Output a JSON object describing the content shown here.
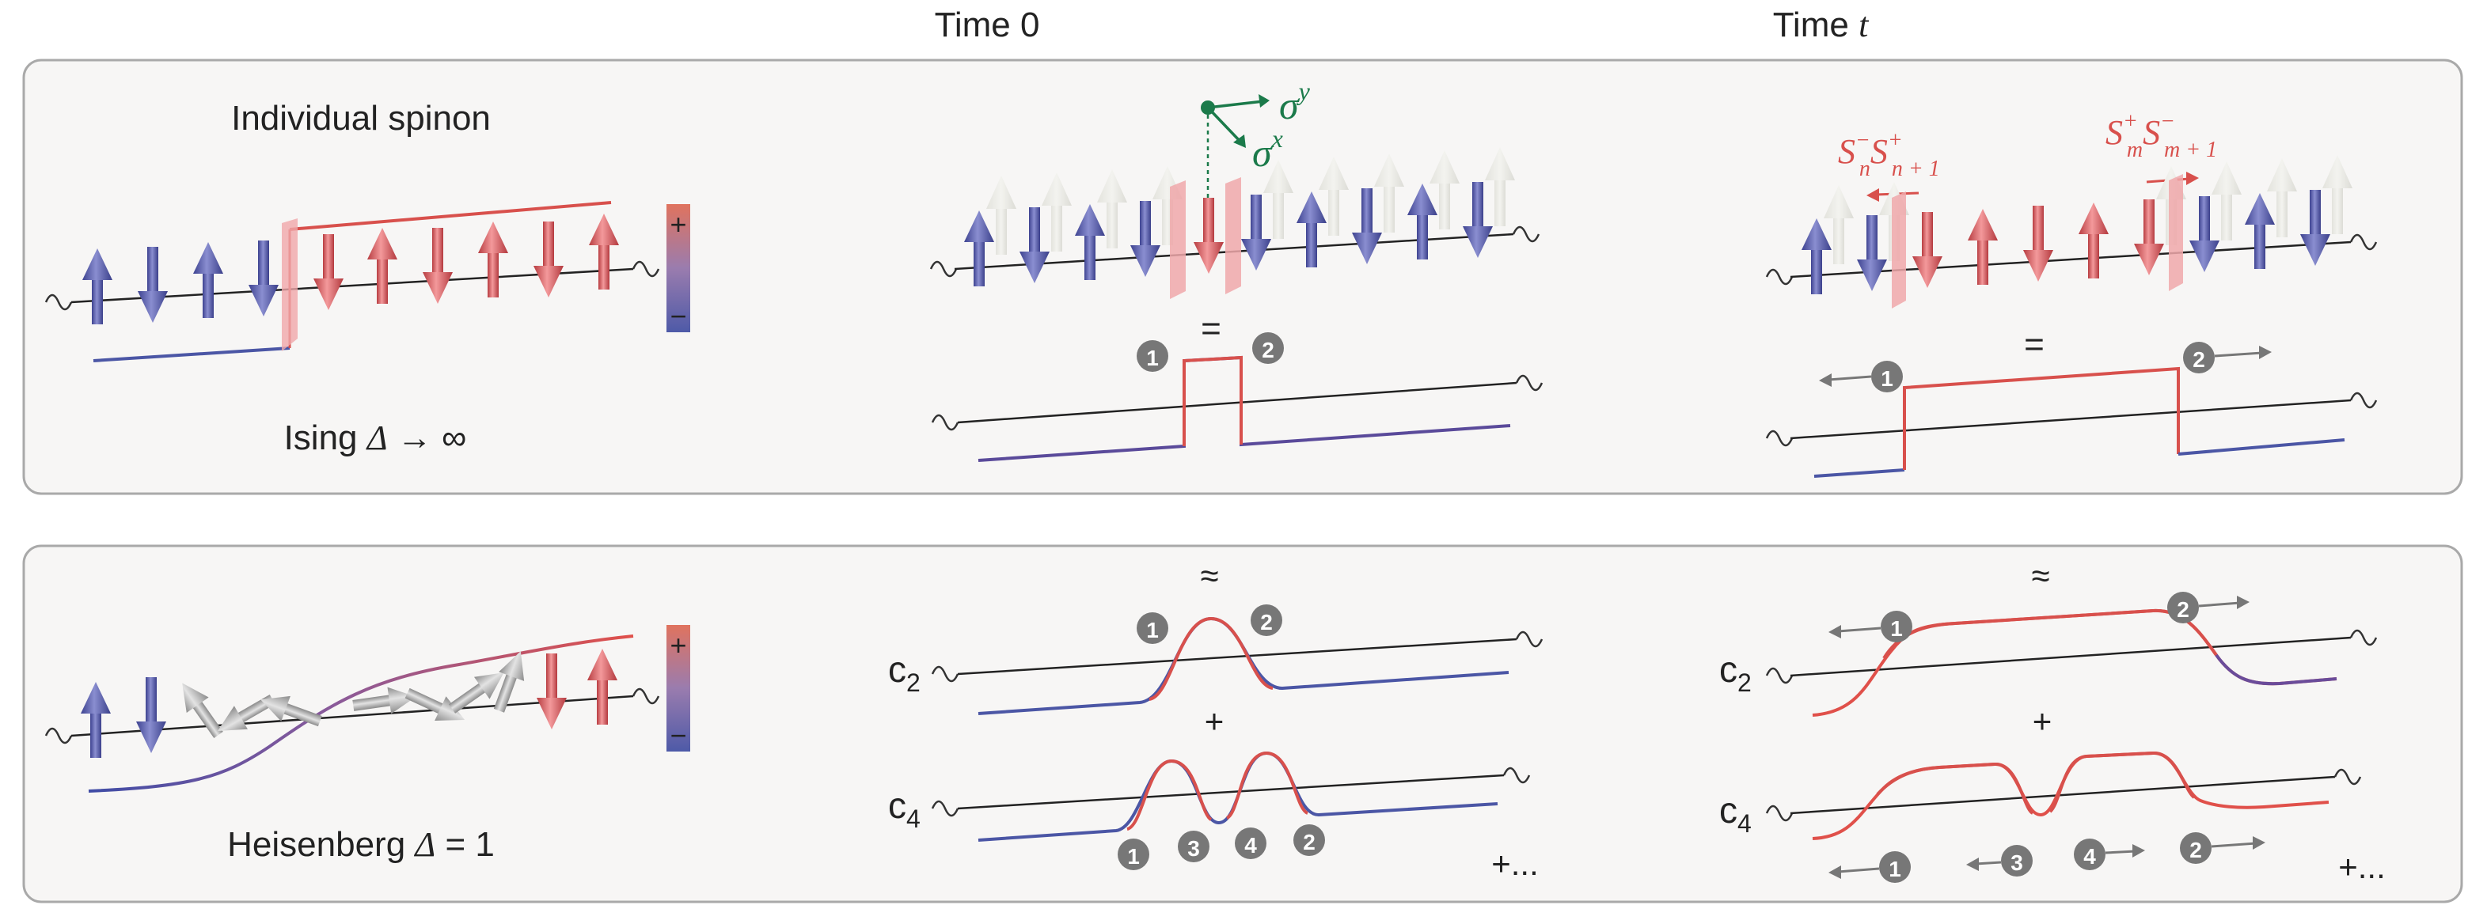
{
  "headers": {
    "time0": "Time 0",
    "timet_prefix": "Time ",
    "timet_var": "t"
  },
  "top_panel": {
    "title": "Individual spinon",
    "model_prefix": "Ising ",
    "model_var": "Δ",
    "model_suffix": " → ∞",
    "colorbar_plus": "+",
    "colorbar_minus": "−",
    "sigma": "σ",
    "sup_y": "y",
    "sup_x": "x",
    "equals": "=",
    "op_left_S": "S",
    "op_left_a_sup": "−",
    "op_left_a_sub": "n",
    "op_left_b_sup": "+",
    "op_left_b_sub": "n + 1",
    "op_right_a_sup": "+",
    "op_right_a_sub": "m",
    "op_right_b_sup": "−",
    "op_right_b_sub": "m + 1"
  },
  "bottom_panel": {
    "model_prefix": "Heisenberg ",
    "model_var": "Δ",
    "model_suffix": " = 1",
    "colorbar_plus": "+",
    "colorbar_minus": "−",
    "approx": "≈",
    "plus": "+",
    "c": "c",
    "c2_sub": "2",
    "c4_sub": "4",
    "plus_more": "+..."
  },
  "markers": [
    "1",
    "2",
    "3",
    "4"
  ],
  "colors": {
    "blue": "#5b5fa8",
    "red": "#d9585c",
    "green": "#1b7a4a",
    "marker": "#777777",
    "panel": "#f7f6f5"
  }
}
